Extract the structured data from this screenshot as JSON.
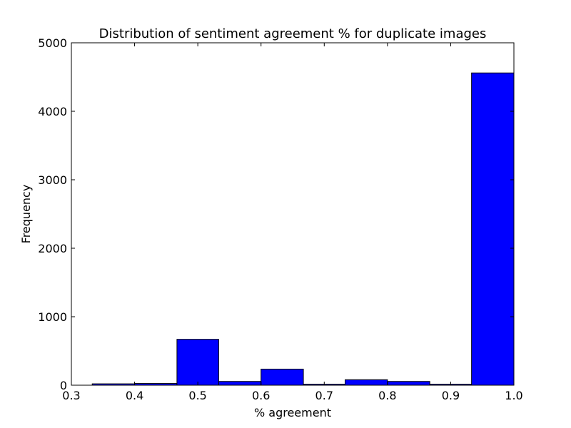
{
  "chart_data": {
    "type": "bar",
    "title": "Distribution of sentiment agreement % for duplicate images",
    "xlabel": "% agreement",
    "ylabel": "Frequency",
    "xlim": [
      0.3,
      1.0
    ],
    "ylim": [
      0,
      5000
    ],
    "x_ticks": [
      "0.3",
      "0.4",
      "0.5",
      "0.6",
      "0.7",
      "0.8",
      "0.9",
      "1.0"
    ],
    "y_ticks": [
      "0",
      "1000",
      "2000",
      "3000",
      "4000",
      "5000"
    ],
    "bar_color": "#0000ff",
    "edge_color": "#000000",
    "bins": [
      {
        "x0": 0.333,
        "x1": 0.4,
        "value": 20
      },
      {
        "x0": 0.4,
        "x1": 0.467,
        "value": 25
      },
      {
        "x0": 0.467,
        "x1": 0.533,
        "value": 670
      },
      {
        "x0": 0.533,
        "x1": 0.6,
        "value": 55
      },
      {
        "x0": 0.6,
        "x1": 0.667,
        "value": 235
      },
      {
        "x0": 0.667,
        "x1": 0.733,
        "value": 15
      },
      {
        "x0": 0.733,
        "x1": 0.8,
        "value": 80
      },
      {
        "x0": 0.8,
        "x1": 0.867,
        "value": 55
      },
      {
        "x0": 0.867,
        "x1": 0.933,
        "value": 15
      },
      {
        "x0": 0.933,
        "x1": 1.0,
        "value": 4560
      }
    ]
  }
}
